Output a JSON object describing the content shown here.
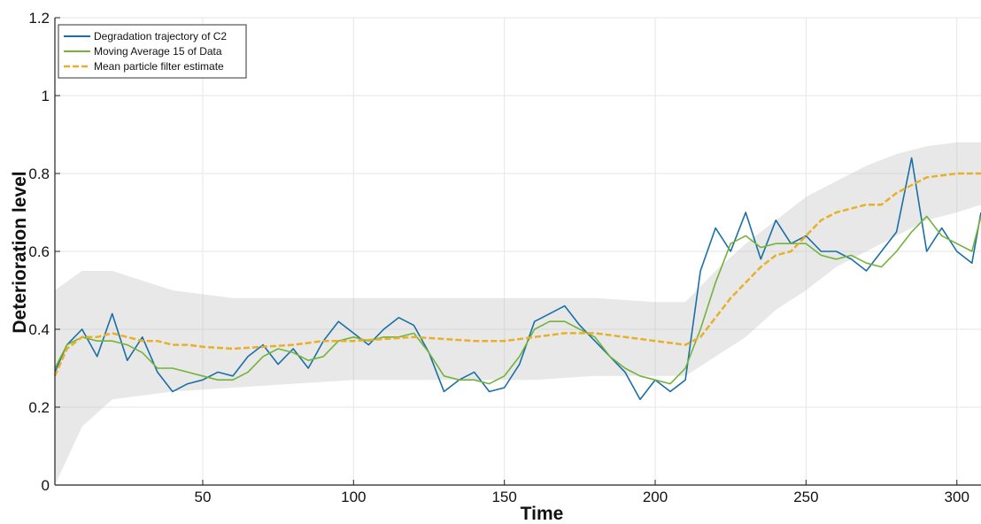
{
  "colors": {
    "trajectory": "#1a6fa6",
    "moving_average": "#73b33a",
    "pf_mean": "#e8b02a",
    "particles": "#bdbdbd",
    "grid": "#e6e6e6"
  },
  "chart_data": {
    "type": "line",
    "xlabel": "Time",
    "ylabel": "Deterioration level",
    "xlim": [
      1,
      308
    ],
    "ylim": [
      0,
      1.2
    ],
    "xticks": [
      50,
      100,
      150,
      200,
      250,
      300
    ],
    "yticks": [
      0,
      0.2,
      0.4,
      0.6,
      0.8,
      1,
      1.2
    ],
    "xtick_labels": [
      "50",
      "100",
      "150",
      "200",
      "250",
      "300"
    ],
    "ytick_labels": [
      "0",
      "0.2",
      "0.4",
      "0.6",
      "0.8",
      "1",
      "1.2"
    ],
    "grid": true,
    "legend_position": "top-left",
    "legend": [
      "Degradation trajectory of C2",
      "Moving Average 15 of Data",
      "Mean particle filter estimate"
    ],
    "series": [
      {
        "name": "Degradation trajectory of C2",
        "style": "solid",
        "x": [
          1,
          5,
          10,
          15,
          20,
          25,
          30,
          35,
          40,
          45,
          50,
          55,
          60,
          65,
          70,
          75,
          80,
          85,
          90,
          95,
          100,
          105,
          110,
          115,
          120,
          125,
          130,
          135,
          140,
          145,
          150,
          155,
          160,
          165,
          170,
          175,
          180,
          185,
          190,
          195,
          200,
          205,
          210,
          215,
          220,
          225,
          230,
          235,
          240,
          245,
          250,
          255,
          260,
          265,
          270,
          275,
          280,
          285,
          290,
          295,
          300,
          305,
          308
        ],
        "y": [
          0.29,
          0.36,
          0.4,
          0.33,
          0.44,
          0.32,
          0.38,
          0.29,
          0.24,
          0.26,
          0.27,
          0.29,
          0.28,
          0.33,
          0.36,
          0.31,
          0.35,
          0.3,
          0.37,
          0.42,
          0.39,
          0.36,
          0.4,
          0.43,
          0.41,
          0.34,
          0.24,
          0.27,
          0.29,
          0.24,
          0.25,
          0.31,
          0.42,
          0.44,
          0.46,
          0.41,
          0.37,
          0.33,
          0.29,
          0.22,
          0.27,
          0.24,
          0.27,
          0.55,
          0.66,
          0.6,
          0.7,
          0.58,
          0.68,
          0.62,
          0.64,
          0.6,
          0.6,
          0.58,
          0.55,
          0.6,
          0.65,
          0.84,
          0.6,
          0.66,
          0.6,
          0.57,
          0.7
        ]
      },
      {
        "name": "Moving Average 15 of Data",
        "style": "solid",
        "x": [
          1,
          5,
          10,
          15,
          20,
          25,
          30,
          35,
          40,
          45,
          50,
          55,
          60,
          65,
          70,
          75,
          80,
          85,
          90,
          95,
          100,
          105,
          110,
          115,
          120,
          125,
          130,
          135,
          140,
          145,
          150,
          155,
          160,
          165,
          170,
          175,
          180,
          185,
          190,
          195,
          200,
          205,
          210,
          215,
          220,
          225,
          230,
          235,
          240,
          245,
          250,
          255,
          260,
          265,
          270,
          275,
          280,
          285,
          290,
          295,
          300,
          305,
          308
        ],
        "y": [
          0.3,
          0.36,
          0.38,
          0.37,
          0.37,
          0.36,
          0.34,
          0.3,
          0.3,
          0.29,
          0.28,
          0.27,
          0.27,
          0.29,
          0.33,
          0.35,
          0.34,
          0.32,
          0.33,
          0.37,
          0.38,
          0.37,
          0.38,
          0.38,
          0.39,
          0.34,
          0.28,
          0.27,
          0.27,
          0.26,
          0.28,
          0.33,
          0.4,
          0.42,
          0.42,
          0.4,
          0.38,
          0.33,
          0.3,
          0.28,
          0.27,
          0.26,
          0.3,
          0.4,
          0.52,
          0.62,
          0.64,
          0.61,
          0.62,
          0.62,
          0.62,
          0.59,
          0.58,
          0.59,
          0.57,
          0.56,
          0.6,
          0.65,
          0.69,
          0.64,
          0.62,
          0.6,
          0.69
        ]
      },
      {
        "name": "Mean particle filter estimate",
        "style": "dashed",
        "x": [
          1,
          5,
          10,
          15,
          20,
          25,
          30,
          35,
          40,
          45,
          50,
          60,
          70,
          80,
          90,
          100,
          110,
          120,
          130,
          140,
          150,
          160,
          170,
          180,
          190,
          200,
          210,
          215,
          220,
          225,
          230,
          235,
          240,
          245,
          250,
          255,
          260,
          265,
          270,
          275,
          280,
          285,
          290,
          295,
          300,
          305,
          308
        ],
        "y": [
          0.28,
          0.35,
          0.38,
          0.38,
          0.39,
          0.38,
          0.37,
          0.37,
          0.36,
          0.36,
          0.355,
          0.35,
          0.355,
          0.36,
          0.37,
          0.37,
          0.375,
          0.38,
          0.375,
          0.37,
          0.37,
          0.38,
          0.39,
          0.39,
          0.38,
          0.37,
          0.36,
          0.38,
          0.43,
          0.48,
          0.52,
          0.56,
          0.59,
          0.6,
          0.64,
          0.68,
          0.7,
          0.71,
          0.72,
          0.72,
          0.75,
          0.77,
          0.79,
          0.795,
          0.8,
          0.8,
          0.8
        ]
      }
    ],
    "particle_cloud": {
      "x": [
        1,
        10,
        20,
        40,
        60,
        80,
        100,
        120,
        140,
        160,
        180,
        200,
        210,
        220,
        230,
        240,
        250,
        260,
        270,
        280,
        290,
        300,
        308
      ],
      "low": [
        0.0,
        0.15,
        0.22,
        0.24,
        0.25,
        0.26,
        0.27,
        0.27,
        0.27,
        0.27,
        0.28,
        0.28,
        0.28,
        0.33,
        0.38,
        0.45,
        0.5,
        0.56,
        0.6,
        0.64,
        0.68,
        0.7,
        0.72
      ],
      "high": [
        0.5,
        0.55,
        0.55,
        0.5,
        0.48,
        0.48,
        0.48,
        0.48,
        0.48,
        0.48,
        0.48,
        0.47,
        0.47,
        0.55,
        0.62,
        0.68,
        0.74,
        0.78,
        0.82,
        0.85,
        0.87,
        0.88,
        0.88
      ]
    }
  }
}
